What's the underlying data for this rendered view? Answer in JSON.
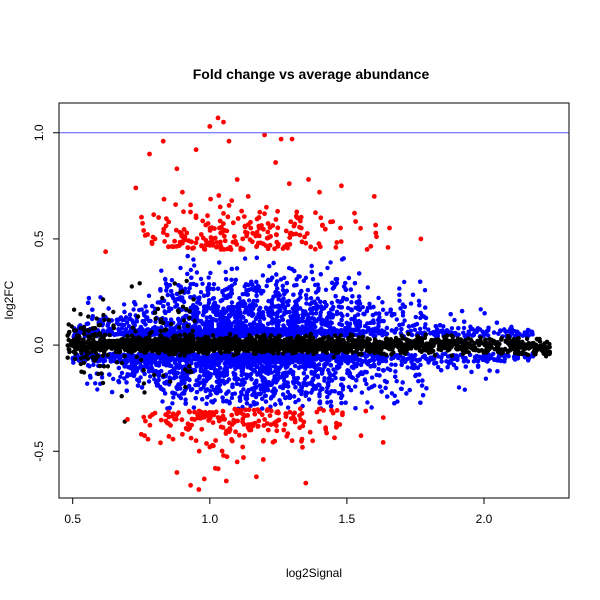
{
  "chart_data": {
    "type": "scatter",
    "title": "Fold change vs average abundance",
    "xlabel": "log2Signal",
    "ylabel": "log2FC",
    "xlim": [
      0.45,
      2.31
    ],
    "ylim": [
      -0.72,
      1.14
    ],
    "x_ticks": [
      0.5,
      1.0,
      1.5,
      2.0
    ],
    "x_tick_labels": [
      "0.5",
      "1.0",
      "1.5",
      "2.0"
    ],
    "y_ticks": [
      -0.5,
      0.0,
      0.5,
      1.0
    ],
    "y_tick_labels": [
      "-0.5",
      "0.0",
      "0.5",
      "1.0"
    ],
    "grid": false,
    "hline": {
      "y": 1.0,
      "color": "#5555ff"
    },
    "colors": {
      "nonsignificant": "#000000",
      "moderate": "#0000ff",
      "strong": "#ff0000"
    },
    "series": [
      {
        "color": "#ff0000",
        "points": [
          [
            0.78,
            0.9
          ],
          [
            0.83,
            0.96
          ],
          [
            1.0,
            1.03
          ],
          [
            1.03,
            1.07
          ],
          [
            1.05,
            1.05
          ],
          [
            1.2,
            0.99
          ],
          [
            1.26,
            0.97
          ],
          [
            1.3,
            0.97
          ],
          [
            1.24,
            0.86
          ],
          [
            0.88,
            0.83
          ],
          [
            0.95,
            0.92
          ],
          [
            1.07,
            0.96
          ],
          [
            1.1,
            0.78
          ],
          [
            0.73,
            0.74
          ],
          [
            0.9,
            0.72
          ],
          [
            1.14,
            0.7
          ],
          [
            1.29,
            0.76
          ],
          [
            1.36,
            0.78
          ],
          [
            1.4,
            0.72
          ],
          [
            1.48,
            0.75
          ],
          [
            1.6,
            0.7
          ],
          [
            0.85,
            0.58
          ],
          [
            0.95,
            0.6
          ],
          [
            1.05,
            0.62
          ],
          [
            1.18,
            0.55
          ],
          [
            1.31,
            0.57
          ],
          [
            1.44,
            0.58
          ],
          [
            1.55,
            0.55
          ],
          [
            0.8,
            0.5
          ],
          [
            0.9,
            0.48
          ],
          [
            1.0,
            0.47
          ],
          [
            1.12,
            0.5
          ],
          [
            1.22,
            0.47
          ],
          [
            1.35,
            0.48
          ],
          [
            1.46,
            0.46
          ],
          [
            1.65,
            0.46
          ],
          [
            1.77,
            0.5
          ],
          [
            0.62,
            0.44
          ],
          [
            0.93,
            0.66
          ],
          [
            1.08,
            0.68
          ],
          [
            0.8,
            -0.32
          ],
          [
            0.85,
            -0.37
          ],
          [
            0.9,
            -0.42
          ],
          [
            0.95,
            -0.45
          ],
          [
            1.0,
            -0.48
          ],
          [
            1.05,
            -0.52
          ],
          [
            1.1,
            -0.55
          ],
          [
            1.15,
            -0.4
          ],
          [
            1.2,
            -0.35
          ],
          [
            1.25,
            -0.32
          ],
          [
            1.3,
            -0.45
          ],
          [
            1.4,
            -0.36
          ],
          [
            1.45,
            -0.32
          ],
          [
            0.7,
            -0.35
          ],
          [
            0.75,
            -0.42
          ],
          [
            0.88,
            -0.6
          ],
          [
            0.98,
            -0.63
          ],
          [
            1.06,
            -0.64
          ],
          [
            1.17,
            -0.62
          ],
          [
            1.35,
            -0.65
          ],
          [
            0.93,
            -0.66
          ],
          [
            0.96,
            -0.68
          ],
          [
            1.02,
            -0.58
          ],
          [
            1.12,
            -0.48
          ],
          [
            1.27,
            -0.4
          ],
          [
            0.82,
            -0.46
          ],
          [
            1.33,
            -0.3
          ],
          [
            1.08,
            -0.33
          ]
        ]
      }
    ]
  }
}
